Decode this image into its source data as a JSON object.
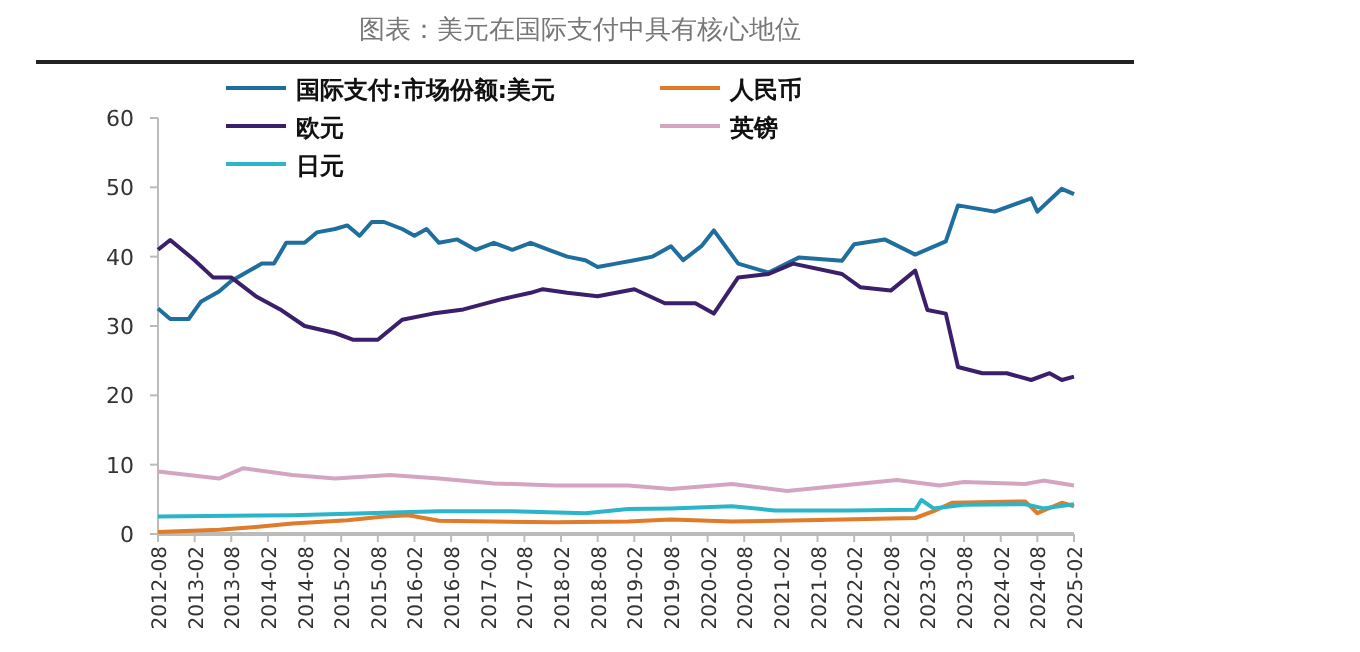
{
  "chart_data": {
    "type": "line",
    "title": "图表：美元在国际支付中具有核心地位",
    "xlim": [
      "2012-08",
      "2025-02"
    ],
    "xticks": [
      "2012-08",
      "2013-02",
      "2013-08",
      "2014-02",
      "2014-08",
      "2015-02",
      "2015-08",
      "2016-02",
      "2016-08",
      "2017-02",
      "2017-08",
      "2018-02",
      "2018-08",
      "2019-02",
      "2019-08",
      "2020-02",
      "2020-08",
      "2021-02",
      "2021-08",
      "2022-02",
      "2022-08",
      "2023-02",
      "2023-08",
      "2024-02",
      "2024-08",
      "2025-02"
    ],
    "ylim": [
      0,
      60
    ],
    "yticks": [
      0,
      10,
      20,
      30,
      40,
      50,
      60
    ],
    "grid": false,
    "legend": "top",
    "marker": "none",
    "line_style": "solid",
    "series": [
      {
        "name": "国际支付:市场份额:美元",
        "color": "#1f6f9e",
        "x": [
          "2012-08",
          "2012-10",
          "2013-01",
          "2013-03",
          "2013-06",
          "2013-08",
          "2013-11",
          "2014-01",
          "2014-03",
          "2014-05",
          "2014-08",
          "2014-10",
          "2015-01",
          "2015-03",
          "2015-05",
          "2015-07",
          "2015-09",
          "2015-12",
          "2016-02",
          "2016-04",
          "2016-06",
          "2016-09",
          "2016-12",
          "2017-03",
          "2017-06",
          "2017-09",
          "2017-12",
          "2018-03",
          "2018-06",
          "2018-08",
          "2018-11",
          "2019-02",
          "2019-05",
          "2019-08",
          "2019-10",
          "2020-01",
          "2020-03",
          "2020-07",
          "2020-12",
          "2021-05",
          "2021-12",
          "2022-02",
          "2022-07",
          "2022-12",
          "2023-05",
          "2023-07",
          "2024-01",
          "2024-07",
          "2024-08",
          "2024-12",
          "2025-02"
        ],
        "values": [
          32.5,
          31,
          31,
          33.5,
          35,
          36.5,
          38,
          39,
          39,
          42,
          42,
          43.5,
          44,
          44.5,
          43,
          45,
          45,
          44,
          43,
          44,
          42,
          42.5,
          41,
          42,
          41,
          42,
          41,
          40,
          39.5,
          38.5,
          39,
          39.5,
          40,
          41.5,
          39.5,
          41.5,
          43.8,
          39,
          37.7,
          39.9,
          39.4,
          41.8,
          42.5,
          40.3,
          42.2,
          47.4,
          46.5,
          48.4,
          46.5,
          49.8,
          49
        ]
      },
      {
        "name": "人民币",
        "color": "#e07b2a",
        "x": [
          "2012-08",
          "2013-06",
          "2013-12",
          "2014-06",
          "2015-03",
          "2015-09",
          "2016-01",
          "2016-06",
          "2018-01",
          "2019-01",
          "2019-08",
          "2020-06",
          "2021-06",
          "2022-06",
          "2022-12",
          "2023-03",
          "2023-06",
          "2024-06",
          "2024-08",
          "2024-12",
          "2025-02"
        ],
        "values": [
          0.3,
          0.6,
          1,
          1.5,
          2,
          2.5,
          2.7,
          1.9,
          1.7,
          1.8,
          2.1,
          1.8,
          2,
          2.2,
          2.3,
          3.3,
          4.5,
          4.7,
          3,
          4.5,
          4
        ]
      },
      {
        "name": "欧元",
        "color": "#3b1f6b",
        "x": [
          "2012-08",
          "2012-10",
          "2013-02",
          "2013-05",
          "2013-08",
          "2013-12",
          "2014-04",
          "2014-08",
          "2015-01",
          "2015-04",
          "2015-08",
          "2015-12",
          "2016-05",
          "2016-10",
          "2017-04",
          "2017-09",
          "2017-11",
          "2018-03",
          "2018-08",
          "2019-02",
          "2019-07",
          "2019-12",
          "2020-03",
          "2020-07",
          "2020-12",
          "2021-04",
          "2021-12",
          "2022-03",
          "2022-08",
          "2022-12",
          "2023-02",
          "2023-05",
          "2023-07",
          "2023-11",
          "2024-03",
          "2024-07",
          "2024-10",
          "2024-12",
          "2025-02"
        ],
        "values": [
          41,
          42.4,
          39.5,
          37,
          37,
          34.3,
          32.4,
          30,
          29,
          28,
          28,
          30.9,
          31.8,
          32.4,
          33.8,
          34.8,
          35.3,
          34.8,
          34.3,
          35.3,
          33.3,
          33.3,
          31.8,
          37,
          37.5,
          39,
          37.5,
          35.6,
          35.1,
          38,
          32.3,
          31.8,
          24.1,
          23.2,
          23.2,
          22.2,
          23.2,
          22.2,
          22.7
        ]
      },
      {
        "name": "英镑",
        "color": "#d4a5c0",
        "x": [
          "2012-08",
          "2013-06",
          "2013-10",
          "2014-06",
          "2015-01",
          "2015-10",
          "2016-06",
          "2017-03",
          "2018-01",
          "2019-01",
          "2019-08",
          "2020-06",
          "2021-03",
          "2021-12",
          "2022-09",
          "2023-04",
          "2023-08",
          "2024-06",
          "2024-09",
          "2025-02"
        ],
        "values": [
          9,
          8,
          9.5,
          8.5,
          8,
          8.5,
          8,
          7.3,
          7,
          7,
          6.5,
          7.2,
          6.2,
          7,
          7.8,
          7,
          7.5,
          7.2,
          7.7,
          7
        ]
      },
      {
        "name": "日元",
        "color": "#2bb5c9",
        "x": [
          "2012-08",
          "2014-06",
          "2015-06",
          "2016-06",
          "2017-06",
          "2018-06",
          "2019-01",
          "2019-08",
          "2020-06",
          "2021-01",
          "2022-01",
          "2022-12",
          "2023-01",
          "2023-03",
          "2023-08",
          "2024-06",
          "2024-09",
          "2025-02"
        ],
        "values": [
          2.5,
          2.7,
          3,
          3.3,
          3.3,
          3,
          3.6,
          3.7,
          4,
          3.4,
          3.4,
          3.5,
          4.9,
          3.7,
          4.2,
          4.3,
          3.7,
          4.3
        ]
      }
    ]
  }
}
